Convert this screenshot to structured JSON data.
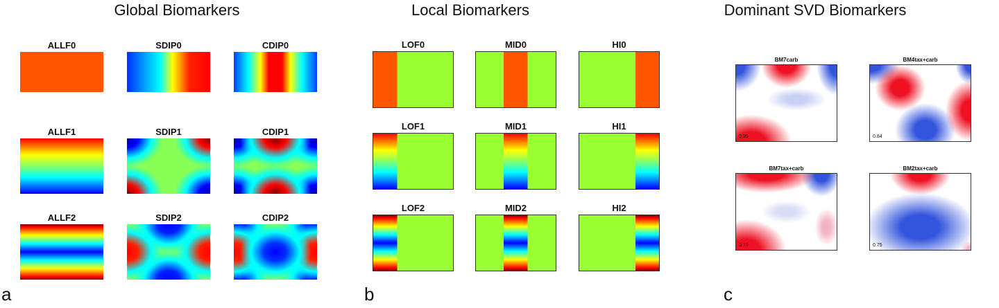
{
  "panels": [
    {
      "letter": "a",
      "title": "Global Biomarkers",
      "items": [
        "ALLF0",
        "SDIP0",
        "CDIP0",
        "ALLF1",
        "SDIP1",
        "CDIP1",
        "ALLF2",
        "SDIP2",
        "CDIP2"
      ]
    },
    {
      "letter": "b",
      "title": "Local Biomarkers",
      "items": [
        "LOF0",
        "MID0",
        "HI0",
        "LOF1",
        "MID1",
        "HI1",
        "LOF2",
        "MID2",
        "HI2"
      ]
    },
    {
      "letter": "c",
      "title": "Dominant SVD Biomarkers",
      "items": [
        {
          "label": "BM7carb",
          "score": "0.95"
        },
        {
          "label": "BM4tax+carb",
          "score": "0.84"
        },
        {
          "label": "BM7tax+carb",
          "score": "0.79"
        },
        {
          "label": "BM2tax+carb",
          "score": "0.75"
        }
      ]
    }
  ]
}
